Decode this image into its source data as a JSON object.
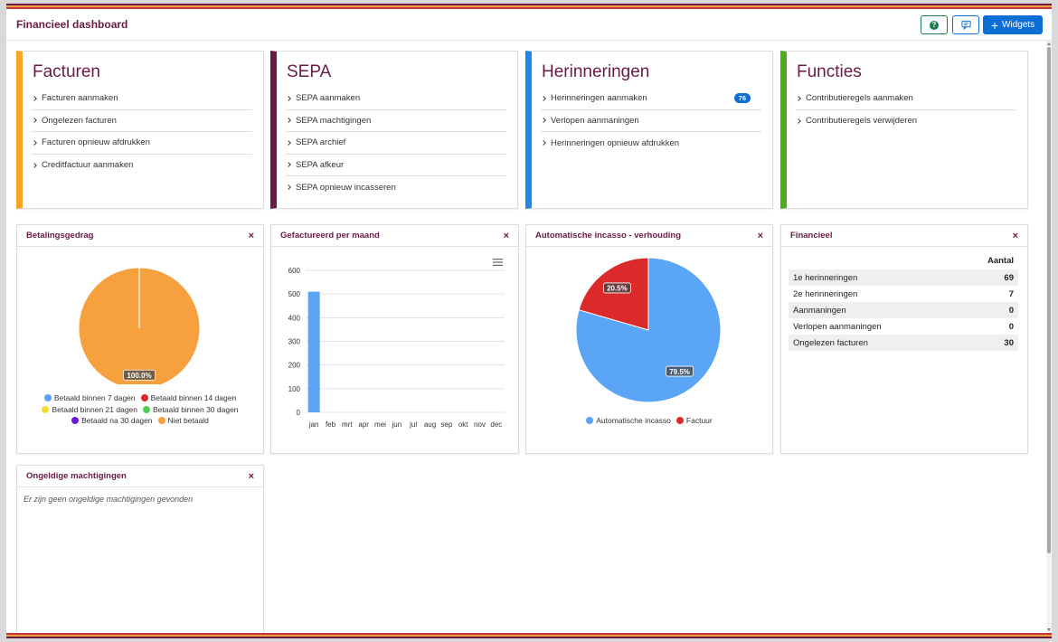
{
  "header": {
    "title": "Financieel dashboard",
    "help_icon": "question-circle-icon",
    "message_icon": "comment-icon",
    "widgets_label": "Widgets"
  },
  "colors": {
    "brand": "#6b1a45",
    "orange": "#f5a623",
    "purple": "#6b1a45",
    "blue": "#1e88e5",
    "green": "#4caf1a"
  },
  "nav_cards": [
    {
      "title": "Facturen",
      "accent": "#f5a623",
      "items": [
        {
          "label": "Facturen aanmaken"
        },
        {
          "label": "Ongelezen facturen"
        },
        {
          "label": "Facturen opnieuw afdrukken"
        },
        {
          "label": "Creditfactuur aanmaken"
        }
      ]
    },
    {
      "title": "SEPA",
      "accent": "#6b1a45",
      "items": [
        {
          "label": "SEPA aanmaken"
        },
        {
          "label": "SEPA machtigingen"
        },
        {
          "label": "SEPA archief"
        },
        {
          "label": "SEPA afkeur"
        },
        {
          "label": "SEPA opnieuw incasseren"
        }
      ]
    },
    {
      "title": "Herinneringen",
      "accent": "#1e88e5",
      "items": [
        {
          "label": "Herinneringen aanmaken",
          "badge": "76"
        },
        {
          "label": "Verlopen aanmaningen"
        },
        {
          "label": "Herinneringen opnieuw afdrukken"
        }
      ]
    },
    {
      "title": "Functies",
      "accent": "#4caf1a",
      "items": [
        {
          "label": "Contributieregels aanmaken"
        },
        {
          "label": "Contributieregels verwijderen"
        }
      ]
    }
  ],
  "widgets": {
    "betalingsgedrag": {
      "title": "Betalingsgedrag",
      "legend": [
        {
          "label": "Betaald binnen 7 dagen",
          "color": "#5aa5f5"
        },
        {
          "label": "Betaald binnen 14 dagen",
          "color": "#dc2a2a"
        },
        {
          "label": "Betaald binnen 21 dagen",
          "color": "#f7d93a"
        },
        {
          "label": "Betaald binnen 30 dagen",
          "color": "#4fcf4f"
        },
        {
          "label": "Betaald na 30 dagen",
          "color": "#6b1ad6"
        },
        {
          "label": "Niet betaald",
          "color": "#f7a03e"
        }
      ]
    },
    "gefactureerd": {
      "title": "Gefactureerd per maand",
      "menu_icon": "hamburger-menu-icon"
    },
    "incasso": {
      "title": "Automatische incasso - verhouding",
      "legend": [
        {
          "label": "Automatische incasso",
          "color": "#5aa5f5"
        },
        {
          "label": "Factuur",
          "color": "#dc2a2a"
        }
      ]
    },
    "financieel": {
      "title": "Financieel",
      "column_header": "Aantal",
      "rows": [
        {
          "label": "1e herinneringen",
          "value": "69"
        },
        {
          "label": "2e herinneringen",
          "value": "7"
        },
        {
          "label": "Aanmaningen",
          "value": "0"
        },
        {
          "label": "Verlopen aanmaningen",
          "value": "0"
        },
        {
          "label": "Ongelezen facturen",
          "value": "30"
        }
      ]
    },
    "machtigingen": {
      "title": "Ongeldige machtigingen",
      "empty_text": "Er zijn geen ongeldige machtigingen gevonden"
    },
    "close_label": "×"
  },
  "chart_data": [
    {
      "type": "pie",
      "title": "Betalingsgedrag",
      "labels": [
        "Betaald binnen 7 dagen",
        "Betaald binnen 14 dagen",
        "Betaald binnen 21 dagen",
        "Betaald binnen 30 dagen",
        "Betaald na 30 dagen",
        "Niet betaald"
      ],
      "values": [
        0,
        0,
        0,
        0,
        0,
        100.0
      ],
      "colors": [
        "#5aa5f5",
        "#dc2a2a",
        "#f7d93a",
        "#4fcf4f",
        "#6b1ad6",
        "#f7a03e"
      ],
      "data_labels": [
        "100.0%"
      ],
      "legend": "bottom"
    },
    {
      "type": "bar",
      "title": "Gefactureerd per maand",
      "categories": [
        "jan",
        "feb",
        "mrt",
        "apr",
        "mei",
        "jun",
        "jul",
        "aug",
        "sep",
        "okt",
        "nov",
        "dec"
      ],
      "values": [
        510,
        0,
        0,
        0,
        0,
        0,
        0,
        0,
        0,
        0,
        0,
        0
      ],
      "yticks": [
        "0",
        "100",
        "200",
        "300",
        "400",
        "500",
        "600"
      ],
      "ylim": [
        0,
        600
      ],
      "grid": true,
      "color": "#5aa5f5"
    },
    {
      "type": "pie",
      "title": "Automatische incasso - verhouding",
      "labels": [
        "Automatische incasso",
        "Factuur"
      ],
      "values": [
        79.5,
        20.5
      ],
      "colors": [
        "#5aa5f5",
        "#dc2a2a"
      ],
      "data_labels": [
        "79.5%",
        "20.5%"
      ],
      "legend": "bottom"
    }
  ]
}
